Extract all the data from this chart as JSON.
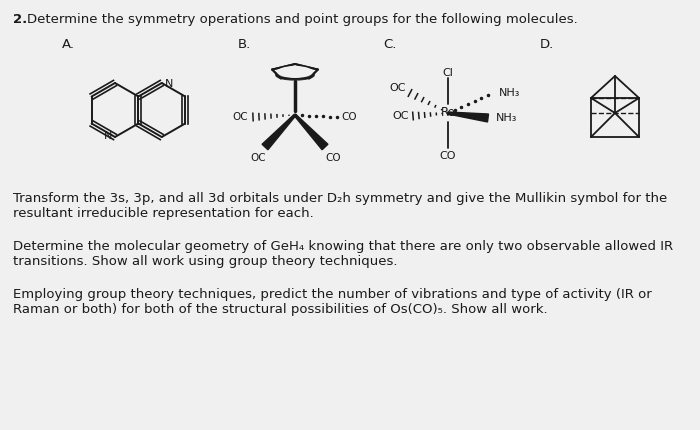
{
  "bg_color": "#f0f0f0",
  "title_number": "2.",
  "title_text": "Determine the symmetry operations and point groups for the following molecules.",
  "label_A": "A.",
  "label_B": "B.",
  "label_C": "C.",
  "label_D": "D.",
  "para1_l1": "Transform the 3s, 3p, and all 3d orbitals under D₂h symmetry and give the Mullikin symbol for the",
  "para1_l2": "resultant irreducible representation for each.",
  "para2_l1": "Determine the molecular geometry of GeH₄ knowing that there are only two observable allowed IR",
  "para2_l2": "transitions. Show all work using group theory techniques.",
  "para3_l1": "Employing group theory techniques, predict the number of vibrations and type of activity (IR or",
  "para3_l2": "Raman or both) for both of the structural possibilities of Os(CO)₅. Show all work.",
  "tc": "#1a1a1a",
  "fs": 9.5,
  "fs_title": 9.5
}
